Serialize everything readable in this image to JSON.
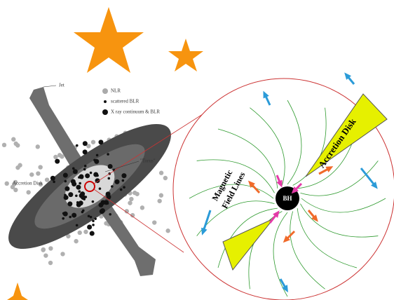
{
  "left_panel": {
    "jet": "Jet",
    "legend": [
      "NLR",
      "scattered BLR",
      "X ray continuum & BLR"
    ],
    "accretion_disk": "Accretion Disk",
    "torus": "\"Torus\""
  },
  "zoom_panel": {
    "field_lines": [
      "Magnetic",
      "Field Lines"
    ],
    "accretion_disk": "Accretion Disk",
    "black_hole": "BH"
  }
}
